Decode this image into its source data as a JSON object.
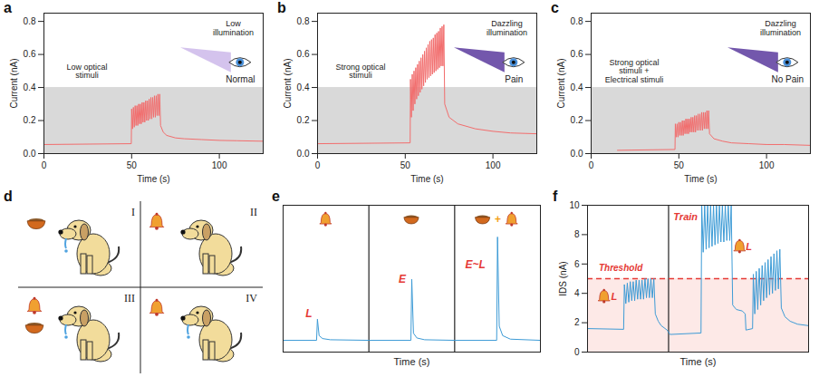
{
  "chart_data": [
    {
      "panel": "a",
      "type": "line",
      "color": "#f26d6d",
      "xlabel": "Time (s)",
      "ylabel": "Current (nA)",
      "xlim": [
        0,
        125
      ],
      "xticks": [
        0,
        50,
        100
      ],
      "ylim": [
        0,
        0.85
      ],
      "yticks": [
        {
          "value": 0,
          "label": "0.0"
        },
        0.2,
        0.4,
        0.6,
        0.8
      ],
      "shaded": {
        "range": [
          0,
          0.4
        ],
        "color": "#d9d9d9"
      },
      "annotations": [
        "Low optical stimuli"
      ],
      "illumination": {
        "text": "Low illumination",
        "state": "Normal",
        "color": "#cdb9ea"
      },
      "x": [
        0,
        49.8,
        50,
        50.5,
        51,
        51.5,
        52,
        52.5,
        53,
        53.5,
        54,
        54.5,
        55,
        55.5,
        56,
        56.5,
        57,
        57.5,
        58,
        58.5,
        59,
        59.5,
        60,
        60.5,
        61,
        61.5,
        62,
        62.5,
        63,
        63.5,
        64,
        64.5,
        65,
        65.5,
        66,
        66.5,
        68,
        70,
        75,
        80,
        90,
        100,
        110,
        125
      ],
      "values": [
        0.055,
        0.06,
        0.27,
        0.15,
        0.28,
        0.16,
        0.29,
        0.17,
        0.29,
        0.17,
        0.3,
        0.18,
        0.3,
        0.18,
        0.31,
        0.19,
        0.31,
        0.19,
        0.32,
        0.2,
        0.32,
        0.2,
        0.33,
        0.21,
        0.34,
        0.21,
        0.34,
        0.22,
        0.35,
        0.22,
        0.35,
        0.23,
        0.36,
        0.23,
        0.36,
        0.17,
        0.13,
        0.11,
        0.095,
        0.09,
        0.085,
        0.08,
        0.078,
        0.075
      ]
    },
    {
      "panel": "b",
      "type": "line",
      "color": "#f26d6d",
      "xlabel": "Time (s)",
      "ylabel": "Current (nA)",
      "xlim": [
        0,
        125
      ],
      "xticks": [
        0,
        50,
        100
      ],
      "ylim": [
        0,
        0.85
      ],
      "yticks": [
        {
          "value": 0,
          "label": "0.0"
        },
        0.2,
        0.4,
        0.6,
        0.8
      ],
      "shaded": {
        "range": [
          0,
          0.4
        ],
        "color": "#d9d9d9"
      },
      "annotations": [
        "Strong optical stimuli"
      ],
      "illumination": {
        "text": "Dazzling illumination",
        "state": "Pain",
        "color": "#5b3a9e"
      },
      "x": [
        0,
        52.8,
        53,
        53.5,
        54,
        54.5,
        55,
        55.5,
        56,
        56.5,
        57,
        57.5,
        58,
        58.5,
        59,
        59.5,
        60,
        60.5,
        61,
        61.5,
        62,
        62.5,
        63,
        63.5,
        64,
        64.5,
        65,
        65.5,
        66,
        66.5,
        67,
        67.5,
        68,
        68.5,
        69,
        69.5,
        70,
        70.5,
        71,
        71.5,
        72,
        72.5,
        75,
        80,
        90,
        100,
        110,
        125
      ],
      "values": [
        0.06,
        0.065,
        0.45,
        0.22,
        0.48,
        0.26,
        0.5,
        0.3,
        0.52,
        0.33,
        0.54,
        0.35,
        0.56,
        0.37,
        0.58,
        0.39,
        0.6,
        0.41,
        0.62,
        0.43,
        0.64,
        0.45,
        0.66,
        0.46,
        0.68,
        0.47,
        0.69,
        0.48,
        0.7,
        0.49,
        0.72,
        0.5,
        0.73,
        0.51,
        0.74,
        0.52,
        0.76,
        0.53,
        0.77,
        0.53,
        0.78,
        0.3,
        0.22,
        0.18,
        0.15,
        0.135,
        0.125,
        0.12
      ]
    },
    {
      "panel": "c",
      "type": "line",
      "color": "#f26d6d",
      "xlabel": "Time (s)",
      "ylabel": "Current (nA)",
      "xlim": [
        0,
        125
      ],
      "xticks": [
        0,
        50,
        100
      ],
      "ylim": [
        0,
        0.85
      ],
      "yticks": [
        {
          "value": 0,
          "label": "0.0"
        },
        0.2,
        0.4,
        0.6,
        0.8
      ],
      "shaded": {
        "range": [
          0,
          0.4
        ],
        "color": "#d9d9d9"
      },
      "annotations": [
        "Strong optical stimuli + Electrical stimuli"
      ],
      "illumination": {
        "text": "Dazzling illumination",
        "state": "No Pain",
        "color": "#5b3a9e"
      },
      "x": [
        15,
        47.8,
        48,
        48.5,
        49,
        49.5,
        50,
        50.5,
        51,
        51.5,
        52,
        52.5,
        53,
        53.5,
        54,
        54.5,
        55,
        55.5,
        56,
        56.5,
        57,
        57.5,
        58,
        58.5,
        59,
        59.5,
        60,
        60.5,
        61,
        61.5,
        62,
        62.5,
        63,
        63.5,
        64,
        64.5,
        65,
        65.5,
        66,
        66.5,
        67,
        67.5,
        70,
        75,
        80,
        90,
        100,
        110,
        125
      ],
      "values": [
        0.02,
        0.025,
        0.18,
        0.1,
        0.18,
        0.1,
        0.19,
        0.11,
        0.19,
        0.11,
        0.2,
        0.11,
        0.2,
        0.12,
        0.21,
        0.12,
        0.21,
        0.12,
        0.21,
        0.13,
        0.22,
        0.13,
        0.22,
        0.13,
        0.23,
        0.13,
        0.23,
        0.14,
        0.24,
        0.14,
        0.24,
        0.14,
        0.25,
        0.14,
        0.25,
        0.15,
        0.25,
        0.15,
        0.26,
        0.15,
        0.26,
        0.12,
        0.09,
        0.075,
        0.065,
        0.06,
        0.055,
        0.055,
        0.05
      ]
    },
    {
      "panel": "e",
      "type": "line",
      "color": "#3d9bd6",
      "xlabel": "Time (s)",
      "tick_labels": false,
      "xlim": [
        0,
        30
      ],
      "ylim": [
        0,
        1.25
      ],
      "dividers": [
        10,
        20
      ],
      "annotations": [
        {
          "text": "L",
          "color": "#e53935"
        },
        {
          "text": "E",
          "color": "#e53935"
        },
        {
          "text": "E~L",
          "color": "#e53935"
        },
        {
          "text": "+",
          "color": "#f39c12"
        }
      ],
      "x": [
        0,
        3.9,
        4,
        4.2,
        4.6,
        5.5,
        10,
        14.9,
        15,
        15.2,
        15.6,
        16.5,
        20,
        24.9,
        25,
        25.2,
        25.6,
        26.5,
        30
      ],
      "values": [
        0.1,
        0.1,
        0.28,
        0.14,
        0.115,
        0.105,
        0.1,
        0.1,
        0.62,
        0.16,
        0.12,
        0.105,
        0.1,
        0.1,
        0.98,
        0.22,
        0.14,
        0.11,
        0.1
      ]
    },
    {
      "panel": "f",
      "type": "line",
      "color": "#3d9bd6",
      "xlabel": "Time (s)",
      "ylabel": "IDS (nA)",
      "tick_labels": "y",
      "xlim": [
        0,
        30
      ],
      "ylim": [
        0,
        10
      ],
      "yticks": [
        0,
        2,
        4,
        6,
        8,
        10
      ],
      "dividers": [
        11
      ],
      "shaded": {
        "range": [
          0,
          5
        ],
        "color": "#fde9e7"
      },
      "threshold": {
        "value": 5,
        "label": "Threshold",
        "color": "#e53935"
      },
      "annotations": [
        {
          "text": "L",
          "color": "#e53935"
        },
        {
          "text": "Train",
          "color": "#e53935"
        },
        {
          "text": "L",
          "color": "#e53935"
        }
      ],
      "x": [
        0,
        4.9,
        5,
        5.2,
        5.4,
        5.6,
        5.8,
        6,
        6.2,
        6.4,
        6.6,
        6.8,
        7,
        7.2,
        7.4,
        7.6,
        7.8,
        8,
        8.2,
        8.4,
        8.6,
        8.8,
        9,
        9.2,
        9.6,
        10,
        10.8,
        11.2,
        15.4,
        15.5,
        15.7,
        15.9,
        16.1,
        16.3,
        16.5,
        16.7,
        16.9,
        17.1,
        17.3,
        17.5,
        17.7,
        17.9,
        18.1,
        18.3,
        18.5,
        18.7,
        18.9,
        19.1,
        19.3,
        19.5,
        19.7,
        20.2,
        21,
        21.4,
        21.5,
        22.4,
        22.5,
        22.7,
        22.9,
        23.1,
        23.3,
        23.5,
        23.7,
        23.9,
        24.1,
        24.3,
        24.5,
        24.7,
        24.9,
        25.1,
        25.3,
        25.5,
        25.7,
        25.9,
        26.1,
        26.3,
        26.8,
        27.5,
        28.5,
        30
      ],
      "values": [
        1.6,
        1.55,
        4.6,
        3.3,
        4.7,
        3.4,
        4.8,
        3.5,
        4.8,
        3.5,
        4.9,
        3.6,
        4.9,
        3.6,
        4.9,
        3.6,
        5,
        3.7,
        5,
        3.7,
        5,
        3.7,
        5,
        2.6,
        2.1,
        1.8,
        1.5,
        1.2,
        1.3,
        10,
        6.8,
        10,
        7,
        10,
        7.1,
        10,
        7.2,
        10,
        7.3,
        10,
        7.4,
        10,
        7.5,
        10,
        7.5,
        10,
        7.6,
        10,
        7.6,
        10,
        3.2,
        2.9,
        2.8,
        2.6,
        1.5,
        1.6,
        5.3,
        2.6,
        5.5,
        2.9,
        5.7,
        3.2,
        5.9,
        3.5,
        6.1,
        3.7,
        6.3,
        3.9,
        6.5,
        4,
        6.7,
        4.2,
        6.9,
        4.3,
        7,
        3,
        2.4,
        2.1,
        1.9,
        1.8
      ]
    }
  ],
  "diagram": {
    "panel": "d",
    "quadrants": [
      {
        "label": "I",
        "food": true,
        "bell": false,
        "salivating": true
      },
      {
        "label": "II",
        "food": false,
        "bell": true,
        "salivating": false
      },
      {
        "label": "III",
        "food": true,
        "bell": true,
        "salivating": true
      },
      {
        "label": "IV",
        "food": false,
        "bell": true,
        "salivating": true
      }
    ]
  }
}
